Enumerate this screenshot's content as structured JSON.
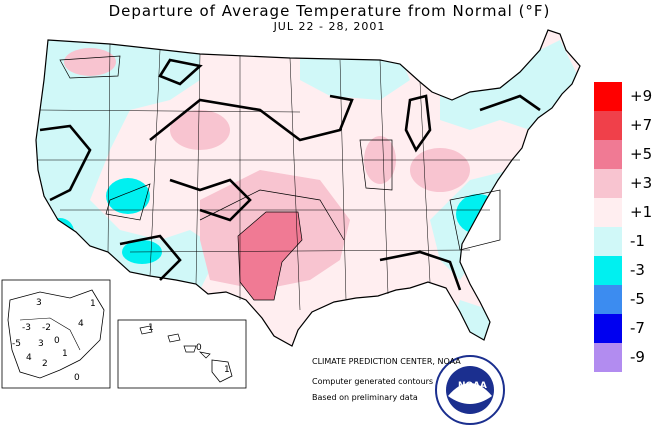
{
  "title": "Departure of Average Temperature from Normal (°F)",
  "subtitle": "JUL 22 - 28, 2001",
  "legend": [
    {
      "label": "+9",
      "color": "#ff0000"
    },
    {
      "label": "+7",
      "color": "#f0404a"
    },
    {
      "label": "+5",
      "color": "#f07a94"
    },
    {
      "label": "+3",
      "color": "#f8c4d0"
    },
    {
      "label": "+1",
      "color": "#ffeef0"
    },
    {
      "label": "-1",
      "color": "#d0f8f8"
    },
    {
      "label": "-3",
      "color": "#00f0f0"
    },
    {
      "label": "-5",
      "color": "#3c8cf0"
    },
    {
      "label": "-7",
      "color": "#0000f0"
    },
    {
      "label": "-9",
      "color": "#b28cf0"
    }
  ],
  "credits": {
    "center": "CLIMATE PREDICTION CENTER, NOAA",
    "line1": "Computer generated contours",
    "line2": "Based on preliminary data"
  },
  "logo": {
    "text": "NOAA"
  },
  "alaska_labels": [
    "3",
    "-3",
    "-2",
    "0",
    "3",
    "1",
    "-5",
    "4",
    "0",
    "2",
    "4",
    "1"
  ],
  "hawaii_labels": [
    "1",
    "0",
    "1"
  ]
}
